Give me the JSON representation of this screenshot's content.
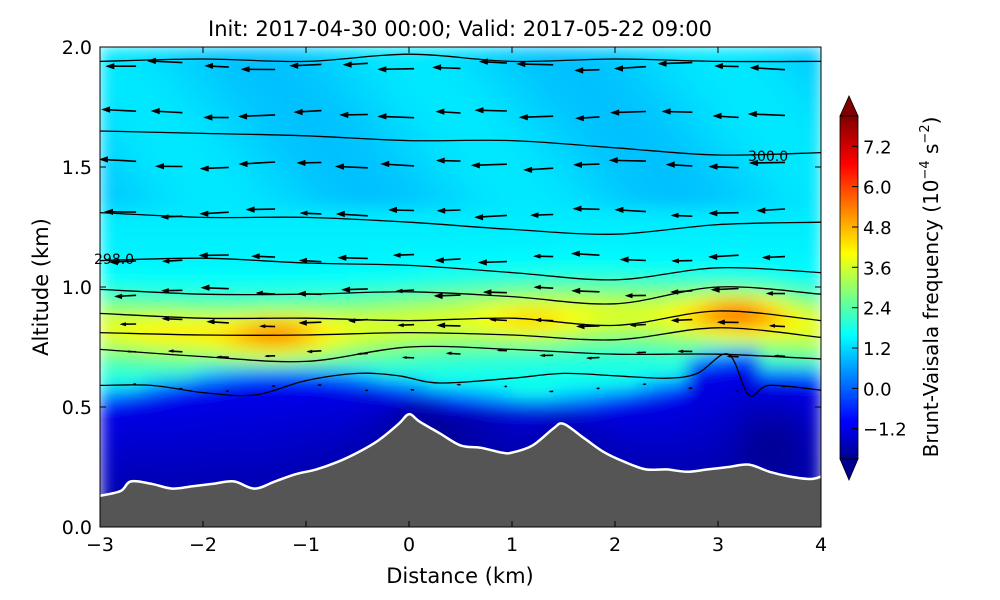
{
  "chart_data": {
    "type": "heatmap",
    "title": "Init: 2017-04-30 00:00; Valid: 2017-05-22 09:00",
    "xlabel": "Distance (km)",
    "ylabel": "Altitude (km)",
    "xlim": [
      -3,
      4
    ],
    "ylim": [
      0,
      2
    ],
    "x_ticks": [
      -3,
      -2,
      -1,
      0,
      1,
      2,
      3,
      4
    ],
    "y_ticks": [
      0.0,
      0.5,
      1.0,
      1.5,
      2.0
    ],
    "x_tick_labels": [
      "−3",
      "−2",
      "−1",
      "0",
      "1",
      "2",
      "3",
      "4"
    ],
    "y_tick_labels": [
      "0.0",
      "0.5",
      "1.0",
      "1.5",
      "2.0"
    ],
    "colorbar": {
      "label": "Brunt-Vaisala frequency (10⁻⁴ s⁻²)",
      "label_text": "Brunt-Vaisala frequency (10",
      "label_exp1": "−4",
      "label_mid": " s",
      "label_exp2": "−2",
      "label_end": ")",
      "range": [
        -2.1,
        8.1
      ],
      "ticks": [
        -1.2,
        0.0,
        1.2,
        2.4,
        3.6,
        4.8,
        6.0,
        7.2
      ],
      "tick_labels": [
        "−1.2",
        "0.0",
        "1.2",
        "2.4",
        "3.6",
        "4.8",
        "6.0",
        "7.2"
      ],
      "extend": "both",
      "colormap": "jet"
    },
    "terrain": {
      "color": "#555555",
      "outline_color": "#ffffff",
      "x": [
        -3.0,
        -2.8,
        -2.7,
        -2.5,
        -2.3,
        -2.1,
        -1.9,
        -1.7,
        -1.5,
        -1.3,
        -1.1,
        -0.9,
        -0.7,
        -0.5,
        -0.3,
        -0.1,
        0.0,
        0.1,
        0.3,
        0.5,
        0.7,
        0.9,
        1.0,
        1.2,
        1.4,
        1.5,
        1.7,
        1.9,
        2.1,
        2.3,
        2.5,
        2.7,
        2.9,
        3.1,
        3.3,
        3.5,
        3.7,
        3.9,
        4.0
      ],
      "y": [
        0.13,
        0.15,
        0.19,
        0.18,
        0.16,
        0.17,
        0.18,
        0.19,
        0.16,
        0.19,
        0.22,
        0.24,
        0.27,
        0.31,
        0.36,
        0.43,
        0.47,
        0.44,
        0.39,
        0.34,
        0.33,
        0.31,
        0.31,
        0.34,
        0.41,
        0.43,
        0.37,
        0.31,
        0.27,
        0.24,
        0.24,
        0.23,
        0.24,
        0.25,
        0.26,
        0.23,
        0.21,
        0.2,
        0.21
      ]
    },
    "bv_field": {
      "description_layers": [
        {
          "altitude_km": [
            0.0,
            0.45
          ],
          "bv": -1.5
        },
        {
          "altitude_km": [
            0.55,
            0.7
          ],
          "bv": 1.8
        },
        {
          "altitude_km": [
            0.75,
            0.95
          ],
          "bv": 3.8
        },
        {
          "altitude_km": [
            1.0,
            1.3
          ],
          "bv": 2.4
        },
        {
          "altitude_km": [
            1.3,
            2.0
          ],
          "bv": 1.4
        }
      ],
      "maxima": [
        {
          "x": -1.3,
          "y": 0.8,
          "bv": 4.9
        },
        {
          "x": 3.2,
          "y": 0.9,
          "bv": 5.3
        },
        {
          "x": 1.2,
          "y": 0.85,
          "bv": 4.3
        },
        {
          "x": -2.3,
          "y": 0.83,
          "bv": 4.0
        }
      ]
    },
    "contours": {
      "units": "K",
      "labeled": [
        {
          "text": "298.0",
          "x": -3.0,
          "y": 1.12
        },
        {
          "text": "300.0",
          "x": 3.35,
          "y": 1.55
        }
      ],
      "lines": [
        {
          "x": [
            -3,
            -2,
            -1,
            0,
            1,
            2,
            3,
            4
          ],
          "y": [
            1.94,
            1.95,
            1.94,
            1.97,
            1.94,
            1.95,
            1.94,
            1.94
          ]
        },
        {
          "x": [
            -3,
            -2,
            -1,
            0,
            1,
            2,
            3,
            4
          ],
          "y": [
            1.65,
            1.64,
            1.63,
            1.61,
            1.61,
            1.58,
            1.55,
            1.56
          ]
        },
        {
          "x": [
            -3,
            -2,
            -1,
            0,
            1,
            2,
            3,
            4
          ],
          "y": [
            1.31,
            1.29,
            1.29,
            1.27,
            1.24,
            1.22,
            1.26,
            1.27
          ]
        },
        {
          "x": [
            -3,
            -2,
            -1,
            0,
            1,
            2,
            3,
            4
          ],
          "y": [
            1.11,
            1.12,
            1.1,
            1.09,
            1.06,
            1.03,
            1.08,
            1.06
          ]
        },
        {
          "x": [
            -3,
            -2,
            -1,
            0,
            1,
            2,
            3,
            4
          ],
          "y": [
            0.99,
            0.97,
            0.97,
            0.98,
            0.96,
            0.93,
            1.0,
            0.97
          ]
        },
        {
          "x": [
            -3,
            -2,
            -1,
            0,
            1,
            2,
            3,
            4
          ],
          "y": [
            0.89,
            0.87,
            0.87,
            0.86,
            0.87,
            0.84,
            0.9,
            0.86
          ]
        },
        {
          "x": [
            -3,
            -2,
            -1,
            0,
            1,
            2,
            3,
            4
          ],
          "y": [
            0.81,
            0.8,
            0.8,
            0.81,
            0.8,
            0.78,
            0.83,
            0.79
          ]
        },
        {
          "x": [
            -3,
            -2,
            -1,
            0,
            1,
            2,
            3,
            4
          ],
          "y": [
            0.74,
            0.71,
            0.69,
            0.75,
            0.74,
            0.72,
            0.72,
            0.7
          ]
        },
        {
          "x": [
            -3,
            -2.5,
            -2,
            -1.5,
            -1,
            -0.5,
            -0.1,
            0.3,
            1,
            1.5,
            2,
            2.5,
            2.8,
            3.1,
            3.3,
            3.5,
            4
          ],
          "y": [
            0.59,
            0.59,
            0.56,
            0.55,
            0.61,
            0.64,
            0.63,
            0.6,
            0.62,
            0.64,
            0.63,
            0.62,
            0.64,
            0.72,
            0.55,
            0.59,
            0.57
          ]
        }
      ]
    },
    "wind_arrows": {
      "direction": "westward",
      "rows": [
        {
          "y": 1.92,
          "u": 0.32
        },
        {
          "y": 1.72,
          "u": 0.32
        },
        {
          "y": 1.51,
          "u": 0.32
        },
        {
          "y": 1.31,
          "u": 0.28
        },
        {
          "y": 1.12,
          "u": 0.26
        },
        {
          "y": 0.98,
          "u": 0.24
        },
        {
          "y": 0.85,
          "u": 0.2
        },
        {
          "y": 0.72,
          "u": 0.12
        },
        {
          "y": 0.58,
          "u": 0.03
        }
      ]
    }
  }
}
